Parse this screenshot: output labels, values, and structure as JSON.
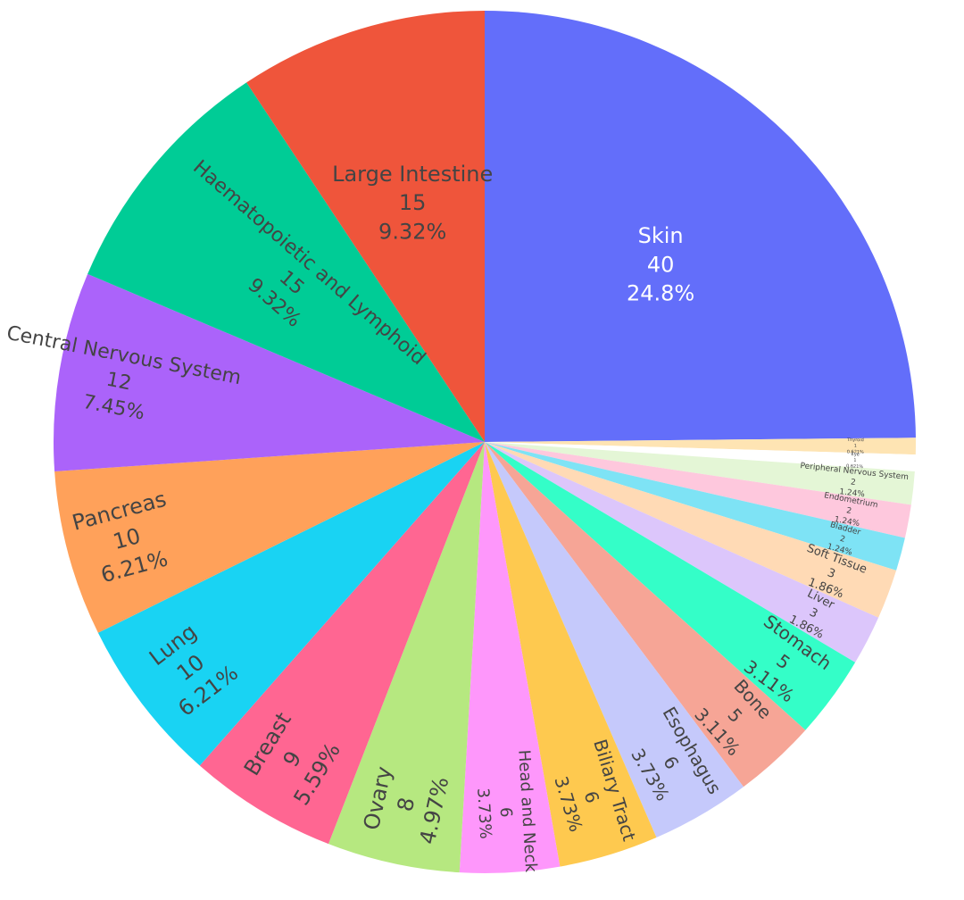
{
  "chart_data": {
    "type": "pie",
    "title": "",
    "total": 161,
    "center": [
      543,
      495
    ],
    "radius": 483,
    "slices": [
      {
        "label": "Skin",
        "value": 40,
        "percent": "24.8%",
        "color": "#636efa",
        "text_color": "#ffffff",
        "font": 24
      },
      {
        "label": "Thyroid",
        "value": 1,
        "percent": "0.621%",
        "color": "#fee4b3",
        "text_color": "#444444",
        "font": 5
      },
      {
        "label": "Eye",
        "value": 1,
        "percent": "0.621%",
        "color": "#ffffff",
        "text_color": "#444444",
        "font": 5
      },
      {
        "label": "Peripheral Nervous System",
        "value": 2,
        "percent": "1.24%",
        "color": "#e4f6d6",
        "text_color": "#444444",
        "font": 9
      },
      {
        "label": "Endometrium",
        "value": 2,
        "percent": "1.24%",
        "color": "#fec8dd",
        "text_color": "#444444",
        "font": 9
      },
      {
        "label": "Bladder",
        "value": 2,
        "percent": "1.24%",
        "color": "#7ee3f5",
        "text_color": "#444444",
        "font": 9
      },
      {
        "label": "Soft Tissue",
        "value": 3,
        "percent": "1.86%",
        "color": "#ffdab5",
        "text_color": "#444444",
        "font": 13
      },
      {
        "label": "Liver",
        "value": 3,
        "percent": "1.86%",
        "color": "#dcc6fb",
        "text_color": "#444444",
        "font": 13
      },
      {
        "label": "Stomach",
        "value": 5,
        "percent": "3.11%",
        "color": "#34fec8",
        "text_color": "#444444",
        "font": 20
      },
      {
        "label": "Bone",
        "value": 5,
        "percent": "3.11%",
        "color": "#f6a596",
        "text_color": "#444444",
        "font": 20
      },
      {
        "label": "Esophagus",
        "value": 6,
        "percent": "3.73%",
        "color": "#c5c9fb",
        "text_color": "#444444",
        "font": 20
      },
      {
        "label": "Biliary Tract",
        "value": 6,
        "percent": "3.73%",
        "color": "#fec94f",
        "text_color": "#444444",
        "font": 20
      },
      {
        "label": "Head and Neck",
        "value": 6,
        "percent": "3.73%",
        "color": "#fe97fb",
        "text_color": "#444444",
        "font": 18
      },
      {
        "label": "Ovary",
        "value": 8,
        "percent": "4.97%",
        "color": "#b6e880",
        "text_color": "#444444",
        "font": 24
      },
      {
        "label": "Breast",
        "value": 9,
        "percent": "5.59%",
        "color": "#ff6692",
        "text_color": "#444444",
        "font": 24
      },
      {
        "label": "Lung",
        "value": 10,
        "percent": "6.21%",
        "color": "#19d3f3",
        "text_color": "#444444",
        "font": 24
      },
      {
        "label": "Pancreas",
        "value": 10,
        "percent": "6.21%",
        "color": "#ffa15a",
        "text_color": "#444444",
        "font": 24
      },
      {
        "label": "Central Nervous System",
        "value": 12,
        "percent": "7.45%",
        "color": "#ab63fa",
        "text_color": "#444444",
        "font": 22
      },
      {
        "label": "Haematopoietic and Lymphoid",
        "value": 15,
        "percent": "9.32%",
        "color": "#00cc96",
        "text_color": "#444444",
        "font": 22
      },
      {
        "label": "Large Intestine",
        "value": 15,
        "percent": "9.32%",
        "color": "#ef553b",
        "text_color": "#444444",
        "font": 24
      }
    ],
    "direction": "clockwise",
    "start_angle_deg": 90,
    "legend": "none",
    "textinfo": "label+value+percent"
  }
}
